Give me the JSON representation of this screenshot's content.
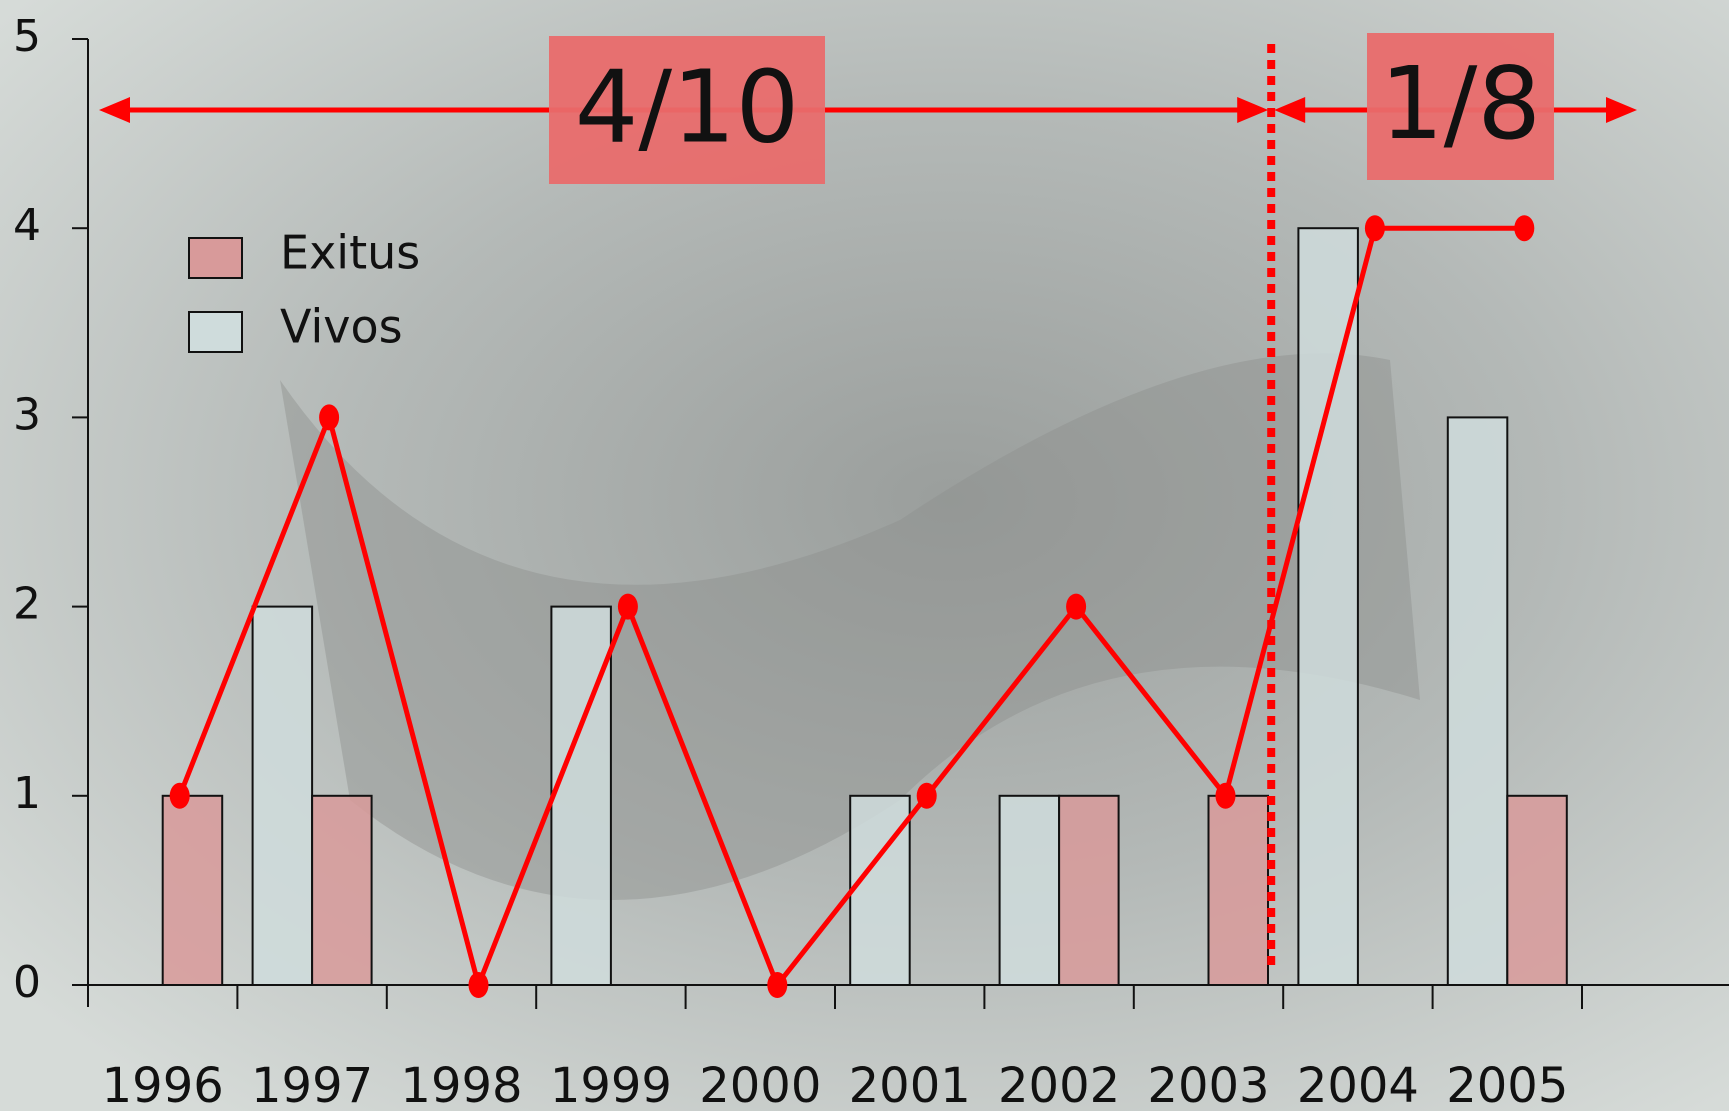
{
  "chart_data": {
    "type": "bar",
    "categories": [
      "1996",
      "1997",
      "1998",
      "1999",
      "2000",
      "2001",
      "2002",
      "2003",
      "2004",
      "2005"
    ],
    "series": [
      {
        "name": "Exitus",
        "color": "#d89a9a",
        "values": [
          1,
          1,
          0,
          0,
          0,
          0,
          1,
          1,
          0,
          1
        ]
      },
      {
        "name": "Vivos",
        "color": "#cfdcdc",
        "values": [
          0,
          2,
          0,
          2,
          0,
          1,
          1,
          0,
          4,
          3
        ]
      }
    ],
    "line": {
      "color": "#ff0000",
      "values": [
        1,
        3,
        0,
        2,
        0,
        1,
        2,
        1,
        4,
        4
      ]
    },
    "ylim": [
      0,
      5
    ],
    "yticks": [
      0,
      1,
      2,
      3,
      4,
      5
    ],
    "annotations": [
      "4/10",
      "1/8"
    ]
  }
}
